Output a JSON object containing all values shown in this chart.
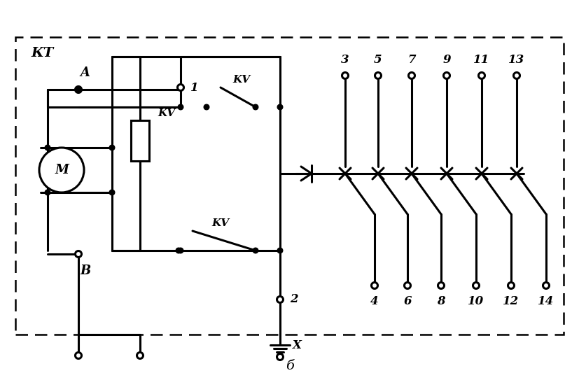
{
  "bg_color": "#ffffff",
  "fig_width": 8.28,
  "fig_height": 5.43,
  "dpi": 100,
  "label_b": "б",
  "label_KT": "КТ",
  "label_A": "A",
  "label_B": "B",
  "label_1": "1",
  "label_2": "2",
  "label_X": "X",
  "label_KV": "KV",
  "label_M": "M",
  "top_labels": [
    "3",
    "5",
    "7",
    "9",
    "11",
    "13"
  ],
  "bot_labels": [
    "4",
    "6",
    "8",
    "10",
    "12",
    "14"
  ],
  "lw": 2.2,
  "lw_thin": 1.5
}
